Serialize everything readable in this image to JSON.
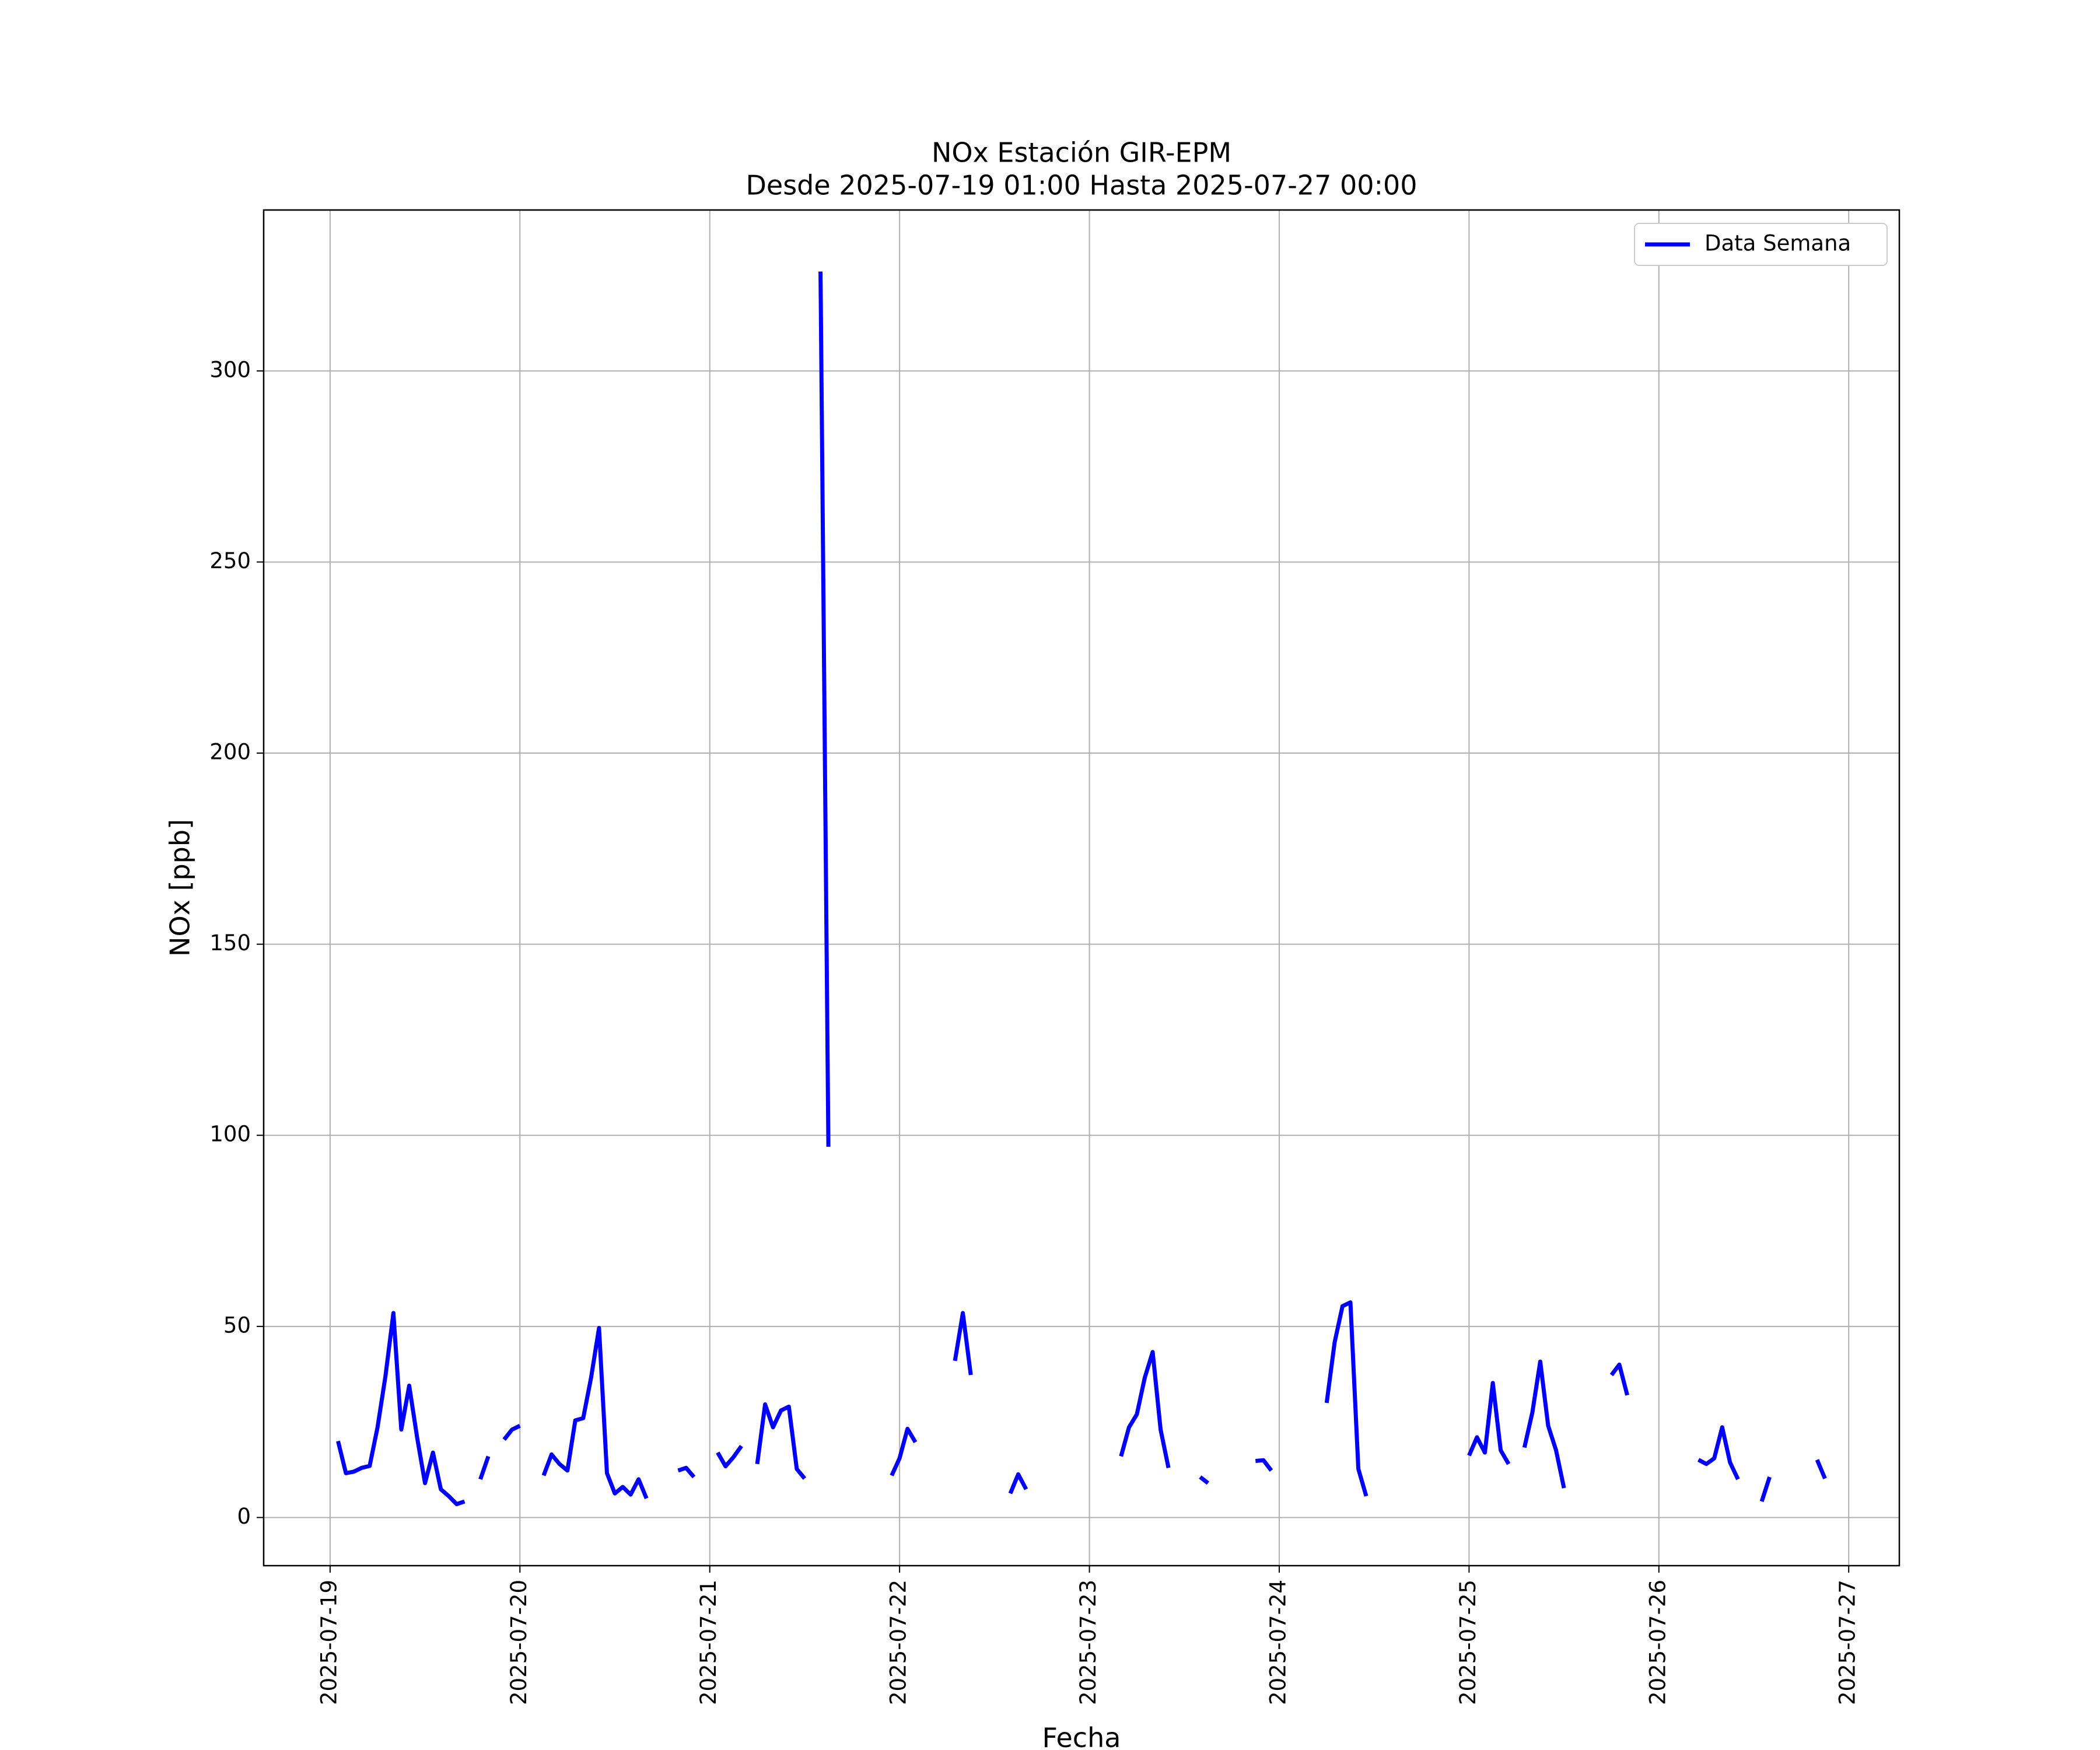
{
  "chart_data": {
    "type": "line",
    "title": "NOx Estación GIR-EPM",
    "subtitle": "Desde 2025-07-19 01:00 Hasta 2025-07-27 00:00",
    "xlabel": "Fecha",
    "ylabel": "NOx [ppb]",
    "grid": true,
    "legend": "upper right",
    "xlim": [
      "2025-07-18 15:36",
      "2025-07-27 06:24"
    ],
    "xticks": [
      "2025-07-19",
      "2025-07-20",
      "2025-07-21",
      "2025-07-22",
      "2025-07-23",
      "2025-07-24",
      "2025-07-25",
      "2025-07-26",
      "2025-07-27"
    ],
    "ylim": [
      -12.6,
      342.1
    ],
    "yticks": [
      0,
      50,
      100,
      150,
      200,
      250,
      300
    ],
    "x": [
      "2025-07-19 01:00",
      "2025-07-19 02:00",
      "2025-07-19 03:00",
      "2025-07-19 04:00",
      "2025-07-19 05:00",
      "2025-07-19 06:00",
      "2025-07-19 07:00",
      "2025-07-19 08:00",
      "2025-07-19 09:00",
      "2025-07-19 10:00",
      "2025-07-19 11:00",
      "2025-07-19 12:00",
      "2025-07-19 13:00",
      "2025-07-19 14:00",
      "2025-07-19 15:00",
      "2025-07-19 16:00",
      "2025-07-19 17:00",
      "2025-07-19 18:00",
      "2025-07-19 19:00",
      "2025-07-19 20:00",
      "2025-07-19 21:00",
      "2025-07-19 22:00",
      "2025-07-19 23:00",
      "2025-07-20 00:00",
      "2025-07-20 01:00",
      "2025-07-20 03:00",
      "2025-07-20 04:00",
      "2025-07-20 05:00",
      "2025-07-20 06:00",
      "2025-07-20 07:00",
      "2025-07-20 08:00",
      "2025-07-20 09:00",
      "2025-07-20 10:00",
      "2025-07-20 11:00",
      "2025-07-20 12:00",
      "2025-07-20 13:00",
      "2025-07-20 14:00",
      "2025-07-20 15:00",
      "2025-07-20 16:00",
      "2025-07-20 17:00",
      "2025-07-20 20:00",
      "2025-07-20 21:00",
      "2025-07-20 22:00",
      "2025-07-20 23:00",
      "2025-07-21 01:00",
      "2025-07-21 02:00",
      "2025-07-21 03:00",
      "2025-07-21 04:00",
      "2025-07-21 05:00",
      "2025-07-21 06:00",
      "2025-07-21 07:00",
      "2025-07-21 08:00",
      "2025-07-21 09:00",
      "2025-07-21 10:00",
      "2025-07-21 11:00",
      "2025-07-21 12:00",
      "2025-07-21 13:00",
      "2025-07-21 14:00",
      "2025-07-21 15:00",
      "2025-07-21 16:00",
      "2025-07-21 23:00",
      "2025-07-22 00:00",
      "2025-07-22 01:00",
      "2025-07-22 02:00",
      "2025-07-22 03:00",
      "2025-07-22 07:00",
      "2025-07-22 08:00",
      "2025-07-22 09:00",
      "2025-07-22 10:00",
      "2025-07-22 14:00",
      "2025-07-22 15:00",
      "2025-07-22 16:00",
      "2025-07-22 17:00",
      "2025-07-23 04:00",
      "2025-07-23 05:00",
      "2025-07-23 06:00",
      "2025-07-23 07:00",
      "2025-07-23 08:00",
      "2025-07-23 09:00",
      "2025-07-23 10:00",
      "2025-07-23 11:00",
      "2025-07-23 14:00",
      "2025-07-23 15:00",
      "2025-07-23 16:00",
      "2025-07-23 21:00",
      "2025-07-23 22:00",
      "2025-07-23 23:00",
      "2025-07-24 00:00",
      "2025-07-24 06:00",
      "2025-07-24 07:00",
      "2025-07-24 08:00",
      "2025-07-24 09:00",
      "2025-07-24 10:00",
      "2025-07-24 11:00",
      "2025-07-24 12:00",
      "2025-07-25 00:00",
      "2025-07-25 01:00",
      "2025-07-25 02:00",
      "2025-07-25 03:00",
      "2025-07-25 04:00",
      "2025-07-25 05:00",
      "2025-07-25 06:00",
      "2025-07-25 07:00",
      "2025-07-25 08:00",
      "2025-07-25 09:00",
      "2025-07-25 10:00",
      "2025-07-25 11:00",
      "2025-07-25 12:00",
      "2025-07-25 13:00",
      "2025-07-25 18:00",
      "2025-07-25 19:00",
      "2025-07-25 20:00",
      "2025-07-25 21:00",
      "2025-07-26 05:00",
      "2025-07-26 06:00",
      "2025-07-26 07:00",
      "2025-07-26 08:00",
      "2025-07-26 09:00",
      "2025-07-26 10:00",
      "2025-07-26 11:00",
      "2025-07-26 13:00",
      "2025-07-26 14:00",
      "2025-07-26 15:00",
      "2025-07-26 20:00",
      "2025-07-26 21:00"
    ],
    "series": [
      {
        "name": "Data Semana",
        "color": "#0000ff",
        "values": [
          20,
          11.6,
          12,
          13,
          13.5,
          23.6,
          37,
          53.5,
          23,
          34.5,
          21,
          9,
          17,
          7.4,
          5.6,
          3.5,
          4.2,
          null,
          10,
          16,
          null,
          20.4,
          23,
          24,
          null,
          11,
          16.5,
          14,
          12.3,
          25.4,
          26,
          36.6,
          49.6,
          11.6,
          6.3,
          8,
          6,
          10,
          5,
          null,
          12.3,
          13,
          10.6,
          null,
          17,
          13.4,
          15.8,
          18.7,
          null,
          14,
          29.6,
          23.6,
          28,
          29,
          12.7,
          10.2,
          null,
          326,
          97,
          null,
          11,
          15.5,
          23.2,
          19.7,
          null,
          41,
          53.5,
          37.3,
          null,
          6.3,
          11.3,
          7.4,
          null,
          16,
          23.6,
          27,
          36.6,
          43.3,
          23,
          13,
          null,
          10.6,
          9,
          null,
          14.8,
          15,
          12.3,
          null,
          30,
          45.8,
          55.3,
          56.3,
          12.7,
          5.6,
          null,
          16.2,
          21,
          17,
          35.2,
          17.6,
          14,
          null,
          18.3,
          27.5,
          40.8,
          24,
          17.6,
          7.7,
          null,
          37.3,
          40,
          32,
          null,
          15.1,
          14,
          15.5,
          23.6,
          14.4,
          10,
          null,
          4.2,
          10.6,
          null,
          15.1,
          10.2
        ]
      }
    ]
  }
}
